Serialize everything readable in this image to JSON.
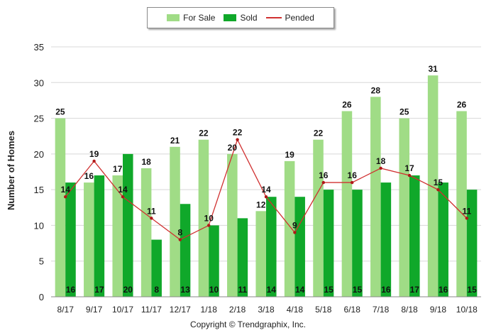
{
  "legend": {
    "for_sale_label": "For Sale",
    "sold_label": "Sold",
    "pended_label": "Pended"
  },
  "colors": {
    "for_sale": "#a0dc86",
    "sold": "#10a82a",
    "pended": "#d03030",
    "pended_marker": "#b01818"
  },
  "copyright": "Copyright © Trendgraphix, Inc.",
  "chart_data": {
    "type": "bar",
    "ylabel": "Number of Homes",
    "xlabel": "",
    "ylim": [
      0,
      35
    ],
    "yticks": [
      0,
      5,
      10,
      15,
      20,
      25,
      30,
      35
    ],
    "grid": true,
    "legend_position": "top-center",
    "categories": [
      "8/17",
      "9/17",
      "10/17",
      "11/17",
      "12/17",
      "1/18",
      "2/18",
      "3/18",
      "4/18",
      "5/18",
      "6/18",
      "7/18",
      "8/18",
      "9/18",
      "10/18"
    ],
    "series": [
      {
        "name": "For Sale",
        "type": "bar",
        "values": [
          25,
          16,
          17,
          18,
          21,
          22,
          20,
          12,
          19,
          22,
          26,
          28,
          25,
          31,
          26
        ]
      },
      {
        "name": "Sold",
        "type": "bar",
        "values": [
          16,
          17,
          20,
          8,
          13,
          10,
          11,
          14,
          14,
          15,
          15,
          16,
          17,
          16,
          15
        ]
      },
      {
        "name": "Pended",
        "type": "line",
        "values": [
          14,
          19,
          14,
          11,
          8,
          10,
          22,
          14,
          9,
          16,
          16,
          18,
          17,
          15,
          11
        ]
      }
    ]
  }
}
